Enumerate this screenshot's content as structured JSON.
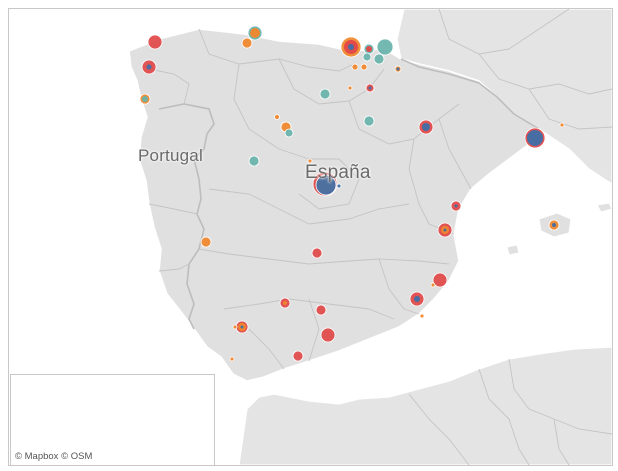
{
  "map": {
    "labels": {
      "portugal": "Portugal",
      "espana": "España"
    },
    "attribution": "© Mapbox  © OSM",
    "colors": {
      "land": "#e2e2e2",
      "sea": "#ffffff",
      "border": "#bdbdbd",
      "marker_red": "#e04848",
      "marker_orange": "#f0862a",
      "marker_blue": "#3f6fa8",
      "marker_teal": "#67b3ab"
    },
    "marker_series": [
      "red",
      "orange",
      "blue",
      "teal"
    ]
  }
}
